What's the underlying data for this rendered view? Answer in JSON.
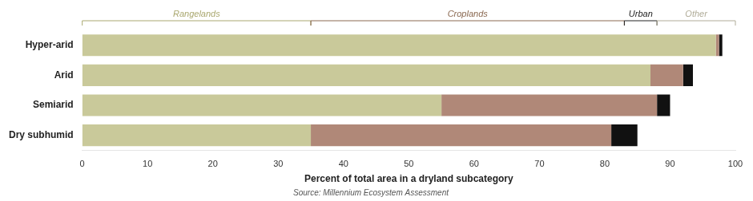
{
  "chart_data": {
    "type": "bar",
    "orientation": "horizontal",
    "stacked": true,
    "categories": [
      "Hyper-arid",
      "Arid",
      "Semiarid",
      "Dry subhumid"
    ],
    "series": [
      {
        "name": "Rangelands",
        "color": "#c9c99a",
        "values": [
          97,
          87,
          55,
          35
        ]
      },
      {
        "name": "Croplands",
        "color": "#b08878",
        "values": [
          0.5,
          5,
          33,
          46
        ]
      },
      {
        "name": "Urban",
        "color": "#111111",
        "values": [
          0.5,
          1.5,
          2,
          4
        ]
      }
    ],
    "xlabel": "Percent of total area in a dryland subcategory",
    "xlim": [
      0,
      100
    ],
    "xticks": [
      0,
      10,
      20,
      30,
      40,
      50,
      60,
      70,
      80,
      90,
      100
    ],
    "grid": false,
    "annotations": [
      {
        "text": "Rangelands",
        "x_range": [
          0,
          35
        ],
        "color": "#aaa870"
      },
      {
        "text": "Croplands",
        "x_range": [
          35,
          83
        ],
        "color": "#8a6850"
      },
      {
        "text": "Urban",
        "x_range": [
          83,
          88
        ],
        "color": "#222222"
      },
      {
        "text": "Other",
        "x_range": [
          88,
          100
        ],
        "color": "#b0ac98"
      }
    ],
    "source": "Source: Millennium Ecosystem Assessment"
  }
}
